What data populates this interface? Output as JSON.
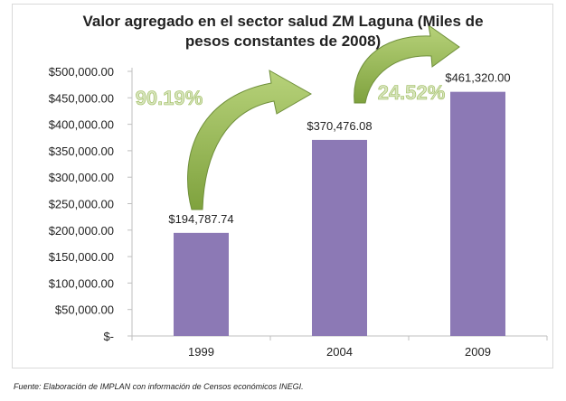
{
  "chart_data": {
    "type": "bar",
    "title_lines": [
      "Valor agregado en el sector salud ZM Laguna (Miles de",
      "pesos constantes de 2008)"
    ],
    "categories": [
      "1999",
      "2004",
      "2009"
    ],
    "values": [
      194787.74,
      370476.08,
      461320.0
    ],
    "data_labels": [
      "$194,787.74",
      "$370,476.08",
      "$461,320.00"
    ],
    "y_ticks": [
      0,
      50000,
      100000,
      150000,
      200000,
      250000,
      300000,
      350000,
      400000,
      450000,
      500000
    ],
    "y_tick_labels": [
      "$-",
      "$50,000.00",
      "$100,000.00",
      "$150,000.00",
      "$200,000.00",
      "$250,000.00",
      "$300,000.00",
      "$350,000.00",
      "$400,000.00",
      "$450,000.00",
      "$500,000.00"
    ],
    "ylim": [
      0,
      500000
    ],
    "xlabel": "",
    "ylabel": "",
    "growth_annotations": [
      {
        "label": "90.19%",
        "from": "1999",
        "to": "2004"
      },
      {
        "label": "24.52%",
        "from": "2004",
        "to": "2009"
      }
    ],
    "colors": {
      "bar": "#8c79b5",
      "arrow_fill": "#8ab04a",
      "arrow_stroke": "#6f8f3a",
      "growth_text": "#d7e4bd",
      "axis": "#bfbfbf"
    },
    "grid": false,
    "legend": "none"
  },
  "source_note": "Fuente: Elaboración de IMPLAN con información de Censos económicos INEGI."
}
